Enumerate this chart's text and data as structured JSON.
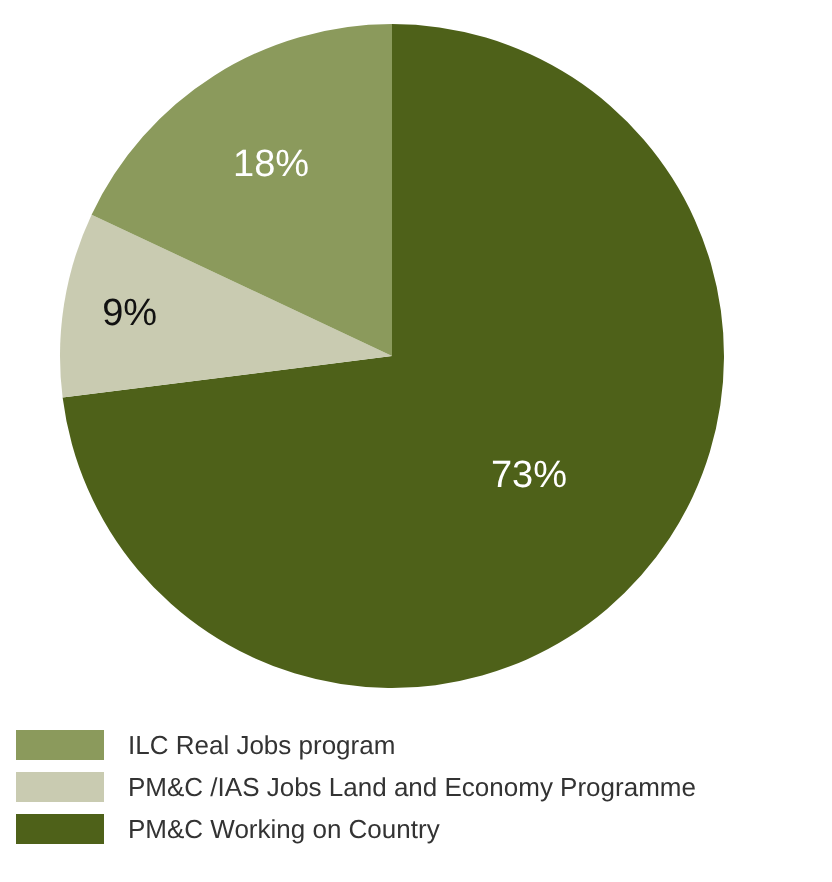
{
  "chart_data": {
    "type": "pie",
    "categories": [
      "PM&C Working on Country",
      "PM&C /IAS Jobs Land and Economy Programme",
      "ILC Real Jobs program"
    ],
    "values": [
      73,
      9,
      18
    ],
    "colors": [
      "#4e6119",
      "#c9cbb1",
      "#8b9a5c"
    ],
    "value_labels": [
      "73%",
      "9%",
      "18%"
    ],
    "legend": "bottom"
  }
}
